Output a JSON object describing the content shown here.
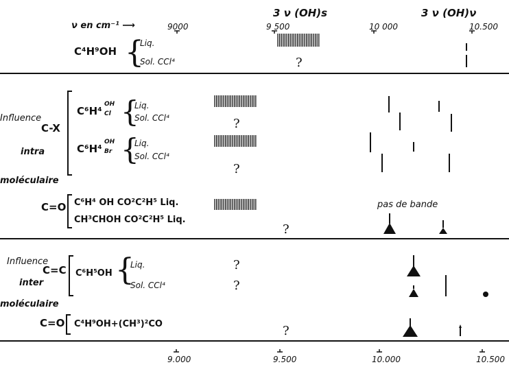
{
  "header": {
    "wavenumber_label": "ν en cm⁻¹ ⟶",
    "band_s_label": "3 ν (OH)s",
    "band_v_label": "3 ν (OH)ν"
  },
  "axis_top_ticks": [
    "9000",
    "9 500",
    "10 000",
    "10.500"
  ],
  "axis_bottom_ticks": [
    "9.000",
    "9.500",
    "10.000",
    "10.500"
  ],
  "section1": {
    "compound": "C⁴H⁹OH",
    "cond_liq": "Liq.",
    "cond_sol": "Sol. CCl⁴",
    "unknown": "?"
  },
  "section2": {
    "label_influence": "Influence",
    "label_cx": "C-X",
    "label_intra": "intra",
    "label_moleculaire": "moléculaire",
    "compound_cl_main": "C⁶H⁴",
    "compound_cl_top": "OH",
    "compound_cl_bot": "Cl",
    "compound_br_main": "C⁶H⁴",
    "compound_br_top": "OH",
    "compound_br_bot": "Br",
    "cond_liq": "Liq.",
    "cond_sol": "Sol. CCl⁴",
    "unknown": "?",
    "label_co": "C=O",
    "compound_co1": "C⁶H⁴ OH CO²C²H⁵ Liq.",
    "compound_co2": "CH³CHOH CO²C²H⁵ Liq.",
    "no_band": "pas de bande"
  },
  "section3": {
    "label_influence": "Influence",
    "label_cc": "C=C",
    "label_inter": "inter",
    "label_moleculaire": "moléculaire",
    "compound_phenol": "C⁶H⁵OH",
    "cond_liq": "Liq.",
    "cond_sol": "Sol. CCl⁴",
    "unknown": "?",
    "label_co": "C=O",
    "compound_mix": "C⁴H⁹OH+(CH³)²CO"
  }
}
